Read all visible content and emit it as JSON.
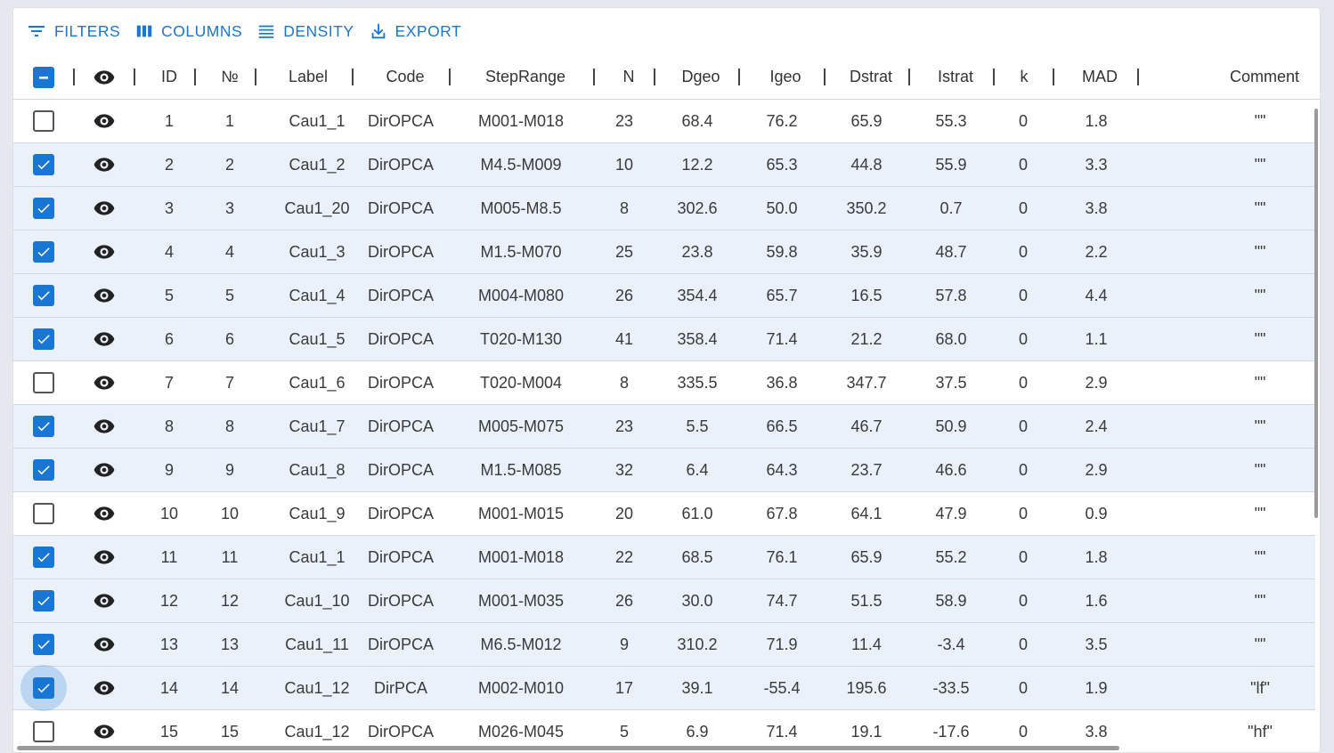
{
  "toolbar": {
    "filters_label": "FILTERS",
    "columns_label": "COLUMNS",
    "density_label": "DENSITY",
    "export_label": "EXPORT"
  },
  "columns": [
    "ID",
    "№",
    "Label",
    "Code",
    "StepRange",
    "N",
    "Dgeo",
    "Igeo",
    "Dstrat",
    "Istrat",
    "k",
    "MAD",
    "Comment"
  ],
  "rows": [
    {
      "selected": false,
      "id": "1",
      "num": "1",
      "label": "Cau1_1",
      "code": "DirOPCA",
      "step": "M001-M018",
      "n": "23",
      "dgeo": "68.4",
      "igeo": "76.2",
      "dstrat": "65.9",
      "istrat": "55.3",
      "k": "0",
      "mad": "1.8",
      "comment": "\"\""
    },
    {
      "selected": true,
      "id": "2",
      "num": "2",
      "label": "Cau1_2",
      "code": "DirOPCA",
      "step": "M4.5-M009",
      "n": "10",
      "dgeo": "12.2",
      "igeo": "65.3",
      "dstrat": "44.8",
      "istrat": "55.9",
      "k": "0",
      "mad": "3.3",
      "comment": "\"\""
    },
    {
      "selected": true,
      "id": "3",
      "num": "3",
      "label": "Cau1_20",
      "code": "DirOPCA",
      "step": "M005-M8.5",
      "n": "8",
      "dgeo": "302.6",
      "igeo": "50.0",
      "dstrat": "350.2",
      "istrat": "0.7",
      "k": "0",
      "mad": "3.8",
      "comment": "\"\""
    },
    {
      "selected": true,
      "id": "4",
      "num": "4",
      "label": "Cau1_3",
      "code": "DirOPCA",
      "step": "M1.5-M070",
      "n": "25",
      "dgeo": "23.8",
      "igeo": "59.8",
      "dstrat": "35.9",
      "istrat": "48.7",
      "k": "0",
      "mad": "2.2",
      "comment": "\"\""
    },
    {
      "selected": true,
      "id": "5",
      "num": "5",
      "label": "Cau1_4",
      "code": "DirOPCA",
      "step": "M004-M080",
      "n": "26",
      "dgeo": "354.4",
      "igeo": "65.7",
      "dstrat": "16.5",
      "istrat": "57.8",
      "k": "0",
      "mad": "4.4",
      "comment": "\"\""
    },
    {
      "selected": true,
      "id": "6",
      "num": "6",
      "label": "Cau1_5",
      "code": "DirOPCA",
      "step": "T020-M130",
      "n": "41",
      "dgeo": "358.4",
      "igeo": "71.4",
      "dstrat": "21.2",
      "istrat": "68.0",
      "k": "0",
      "mad": "1.1",
      "comment": "\"\""
    },
    {
      "selected": false,
      "id": "7",
      "num": "7",
      "label": "Cau1_6",
      "code": "DirOPCA",
      "step": "T020-M004",
      "n": "8",
      "dgeo": "335.5",
      "igeo": "36.8",
      "dstrat": "347.7",
      "istrat": "37.5",
      "k": "0",
      "mad": "2.9",
      "comment": "\"\""
    },
    {
      "selected": true,
      "id": "8",
      "num": "8",
      "label": "Cau1_7",
      "code": "DirOPCA",
      "step": "M005-M075",
      "n": "23",
      "dgeo": "5.5",
      "igeo": "66.5",
      "dstrat": "46.7",
      "istrat": "50.9",
      "k": "0",
      "mad": "2.4",
      "comment": "\"\""
    },
    {
      "selected": true,
      "id": "9",
      "num": "9",
      "label": "Cau1_8",
      "code": "DirOPCA",
      "step": "M1.5-M085",
      "n": "32",
      "dgeo": "6.4",
      "igeo": "64.3",
      "dstrat": "23.7",
      "istrat": "46.6",
      "k": "0",
      "mad": "2.9",
      "comment": "\"\""
    },
    {
      "selected": false,
      "id": "10",
      "num": "10",
      "label": "Cau1_9",
      "code": "DirOPCA",
      "step": "M001-M015",
      "n": "20",
      "dgeo": "61.0",
      "igeo": "67.8",
      "dstrat": "64.1",
      "istrat": "47.9",
      "k": "0",
      "mad": "0.9",
      "comment": "\"\""
    },
    {
      "selected": true,
      "id": "11",
      "num": "11",
      "label": "Cau1_1",
      "code": "DirOPCA",
      "step": "M001-M018",
      "n": "22",
      "dgeo": "68.5",
      "igeo": "76.1",
      "dstrat": "65.9",
      "istrat": "55.2",
      "k": "0",
      "mad": "1.8",
      "comment": "\"\""
    },
    {
      "selected": true,
      "id": "12",
      "num": "12",
      "label": "Cau1_10",
      "code": "DirOPCA",
      "step": "M001-M035",
      "n": "26",
      "dgeo": "30.0",
      "igeo": "74.7",
      "dstrat": "51.5",
      "istrat": "58.9",
      "k": "0",
      "mad": "1.6",
      "comment": "\"\""
    },
    {
      "selected": true,
      "id": "13",
      "num": "13",
      "label": "Cau1_11",
      "code": "DirOPCA",
      "step": "M6.5-M012",
      "n": "9",
      "dgeo": "310.2",
      "igeo": "71.9",
      "dstrat": "11.4",
      "istrat": "-3.4",
      "k": "0",
      "mad": "3.5",
      "comment": "\"\""
    },
    {
      "selected": true,
      "id": "14",
      "num": "14",
      "label": "Cau1_12",
      "code": "DirPCA",
      "step": "M002-M010",
      "n": "17",
      "dgeo": "39.1",
      "igeo": "-55.4",
      "dstrat": "195.6",
      "istrat": "-33.5",
      "k": "0",
      "mad": "1.9",
      "comment": "\"lf\"",
      "focused": true
    },
    {
      "selected": false,
      "id": "15",
      "num": "15",
      "label": "Cau1_12",
      "code": "DirOPCA",
      "step": "M026-M045",
      "n": "5",
      "dgeo": "6.9",
      "igeo": "71.4",
      "dstrat": "19.1",
      "istrat": "-17.6",
      "k": "0",
      "mad": "3.8",
      "comment": "\"hf\""
    }
  ],
  "colors": {
    "accent": "#1976d2",
    "selected_row": "#eaf1fb",
    "background": "#e5e8ee"
  },
  "icons": {
    "filters": "filter-list-icon",
    "columns": "view-column-icon",
    "density": "density-icon",
    "export": "download-icon",
    "visibility": "eye-icon"
  }
}
